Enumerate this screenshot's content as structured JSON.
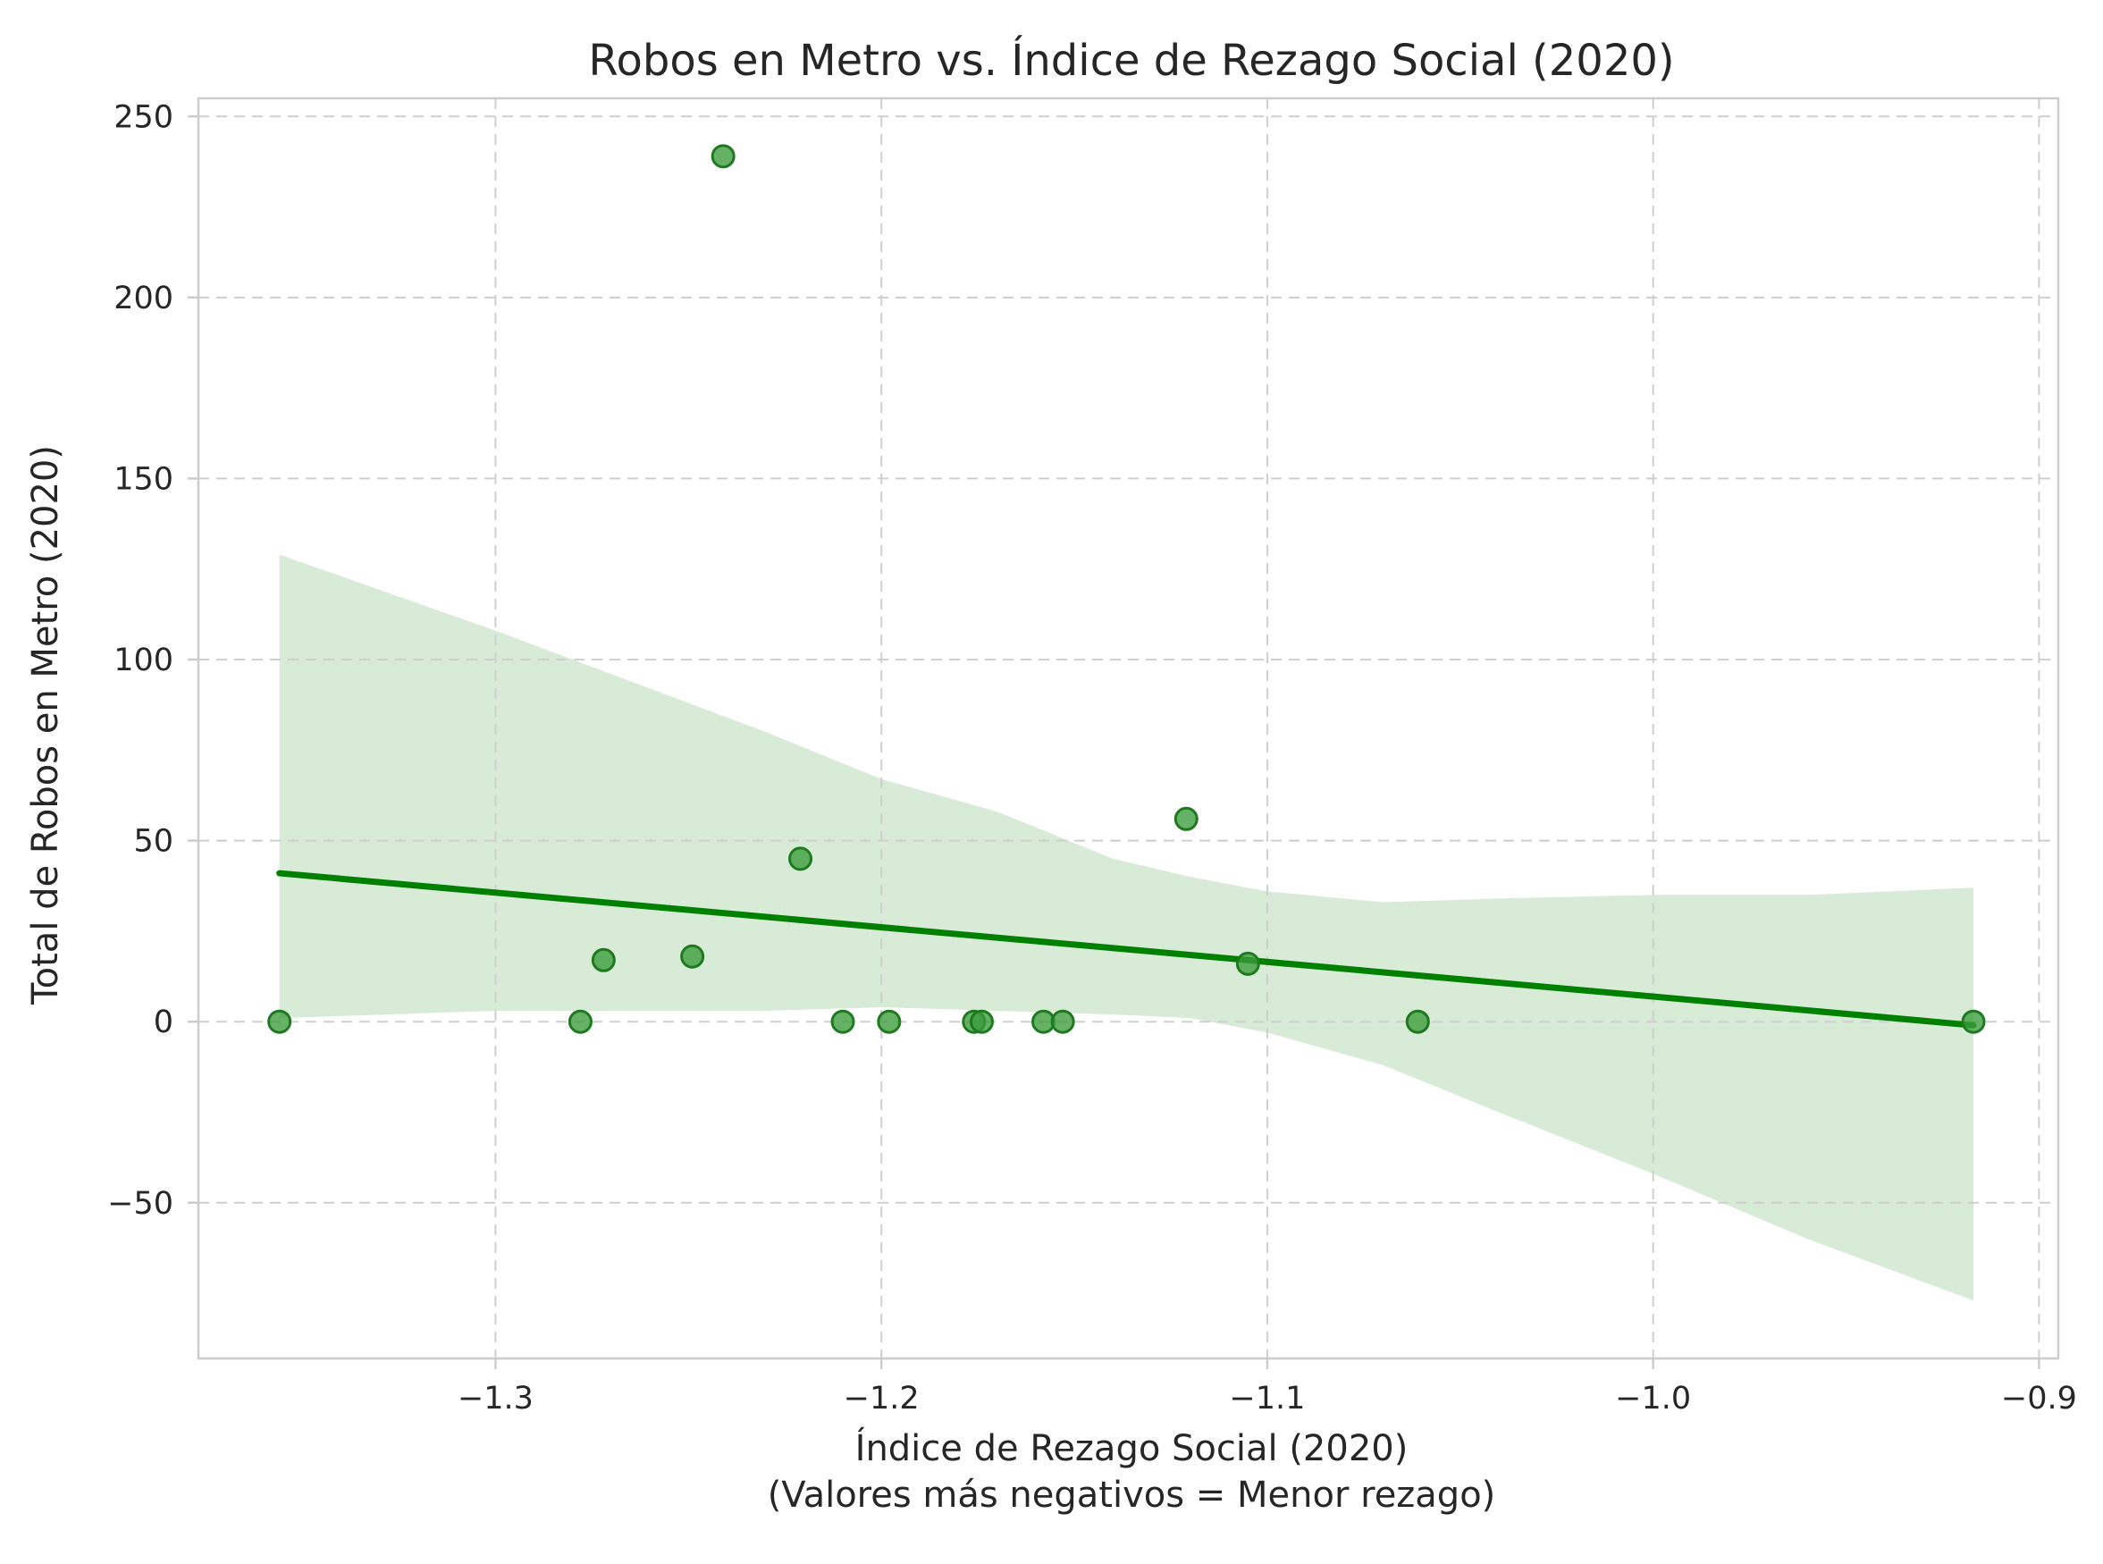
{
  "chart_data": {
    "type": "scatter",
    "title": "Robos en Metro vs. Índice de Rezago Social (2020)",
    "xlabel_line1": "Índice de Rezago Social (2020)",
    "xlabel_line2": "(Valores más negativos = Menor rezago)",
    "ylabel": "Total de Robos en Metro (2020)",
    "xlim": [
      -1.377,
      -0.895
    ],
    "ylim": [
      -93,
      255
    ],
    "xticks": [
      -1.3,
      -1.2,
      -1.1,
      -1.0,
      -0.9
    ],
    "xtick_labels": [
      "−1.3",
      "−1.2",
      "−1.1",
      "−1.0",
      "−0.9"
    ],
    "yticks": [
      -50,
      0,
      50,
      100,
      150,
      200,
      250
    ],
    "ytick_labels": [
      "−50",
      "0",
      "50",
      "100",
      "150",
      "200",
      "250"
    ],
    "grid": true,
    "points": [
      {
        "x": -1.356,
        "y": 0
      },
      {
        "x": -1.278,
        "y": 0
      },
      {
        "x": -1.272,
        "y": 17
      },
      {
        "x": -1.249,
        "y": 18
      },
      {
        "x": -1.241,
        "y": 239
      },
      {
        "x": -1.221,
        "y": 45
      },
      {
        "x": -1.21,
        "y": 0
      },
      {
        "x": -1.198,
        "y": 0
      },
      {
        "x": -1.176,
        "y": 0
      },
      {
        "x": -1.174,
        "y": 0
      },
      {
        "x": -1.158,
        "y": 0
      },
      {
        "x": -1.153,
        "y": 0
      },
      {
        "x": -1.121,
        "y": 56
      },
      {
        "x": -1.105,
        "y": 16
      },
      {
        "x": -1.061,
        "y": 0
      },
      {
        "x": -0.917,
        "y": 0
      }
    ],
    "regression_line": {
      "x": [
        -1.356,
        -0.917
      ],
      "y": [
        41,
        -1
      ]
    },
    "confidence_band": {
      "x": [
        -1.356,
        -1.3,
        -1.26,
        -1.23,
        -1.2,
        -1.17,
        -1.14,
        -1.12,
        -1.1,
        -1.07,
        -1.04,
        -1.0,
        -0.96,
        -0.917
      ],
      "upper": [
        129,
        108,
        92,
        80,
        67,
        58,
        45,
        40,
        36,
        33,
        34,
        35,
        35,
        37
      ],
      "lower": [
        1,
        3,
        3,
        3,
        4,
        3,
        2,
        1,
        -3,
        -12,
        -25,
        -42,
        -60,
        -77
      ]
    },
    "colors": {
      "points": "#3a9b3a",
      "line": "#008000",
      "band": "#d7ebd6"
    }
  }
}
